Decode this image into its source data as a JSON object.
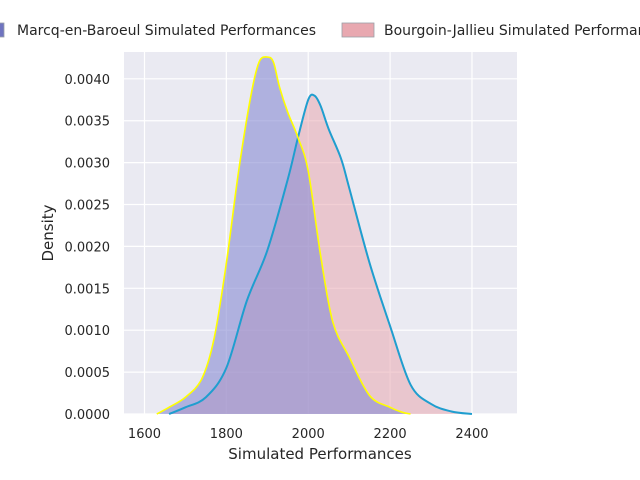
{
  "chart_data": {
    "type": "area",
    "title": "",
    "xlabel": "Simulated Performances",
    "ylabel": "Density",
    "xlim": [
      1550,
      2510
    ],
    "ylim": [
      0,
      0.00432
    ],
    "xticks": [
      1600,
      1800,
      2000,
      2200,
      2400
    ],
    "xtick_labels": [
      "1600",
      "1800",
      "2000",
      "2200",
      "2400"
    ],
    "yticks": [
      0,
      0.0005,
      0.001,
      0.0015,
      0.002,
      0.0025,
      0.003,
      0.0035,
      0.004
    ],
    "ytick_labels": [
      "0.0000",
      "0.0005",
      "0.0010",
      "0.0015",
      "0.0020",
      "0.0025",
      "0.0030",
      "0.0035",
      "0.0040"
    ],
    "grid": true,
    "legend_position": "top",
    "series": [
      {
        "name": "Marcq-en-Baroeul Simulated Performances",
        "fill_color": "#8a8ed3",
        "line_color": "#ffff00",
        "legend_swatch": "#6f74c0",
        "x": [
          1630,
          1660,
          1700,
          1740,
          1770,
          1800,
          1830,
          1860,
          1880,
          1900,
          1915,
          1930,
          1950,
          1975,
          2000,
          2030,
          2060,
          2100,
          2150,
          2200,
          2230,
          2250
        ],
        "y": [
          0.0,
          8e-05,
          0.0002,
          0.00042,
          0.0009,
          0.0018,
          0.0029,
          0.0038,
          0.0042,
          0.00426,
          0.0042,
          0.0039,
          0.0036,
          0.0033,
          0.0029,
          0.0019,
          0.0011,
          0.00068,
          0.00022,
          8e-05,
          2e-05,
          0.0
        ]
      },
      {
        "name": "Bourgoin-Jallieu Simulated Performances",
        "fill_color": "#e8a8b0",
        "line_color": "#1f9ecf",
        "legend_swatch": "#e8a8b0",
        "x": [
          1660,
          1700,
          1750,
          1800,
          1850,
          1900,
          1950,
          1975,
          2000,
          2015,
          2030,
          2050,
          2080,
          2100,
          2150,
          2200,
          2250,
          2300,
          2350,
          2400
        ],
        "y": [
          0.0,
          8e-05,
          0.0002,
          0.00055,
          0.00135,
          0.00195,
          0.0028,
          0.0033,
          0.00375,
          0.0038,
          0.00368,
          0.0034,
          0.00305,
          0.0027,
          0.0018,
          0.00105,
          0.00035,
          0.00012,
          3e-05,
          0.0
        ]
      }
    ]
  }
}
